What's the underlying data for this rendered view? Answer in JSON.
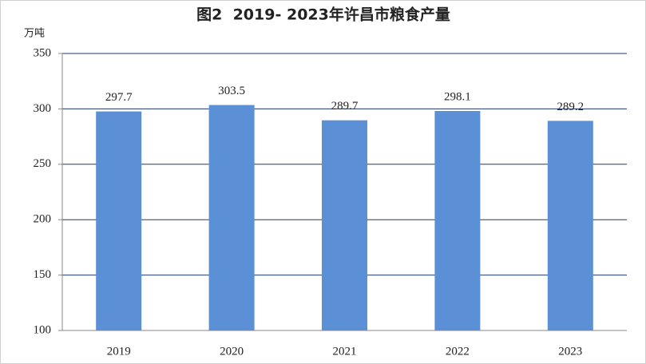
{
  "chart_data": {
    "type": "bar",
    "title": "图2  2019- 2023年许昌市粮食产量",
    "y_label": "万吨",
    "categories": [
      "2019",
      "2020",
      "2021",
      "2022",
      "2023"
    ],
    "values": [
      297.7,
      303.5,
      289.7,
      298.1,
      289.2
    ],
    "color": "#5b8fd6",
    "ylim": [
      100,
      350
    ],
    "yticks": [
      100,
      150,
      200,
      250,
      300,
      350
    ],
    "grid": true
  }
}
